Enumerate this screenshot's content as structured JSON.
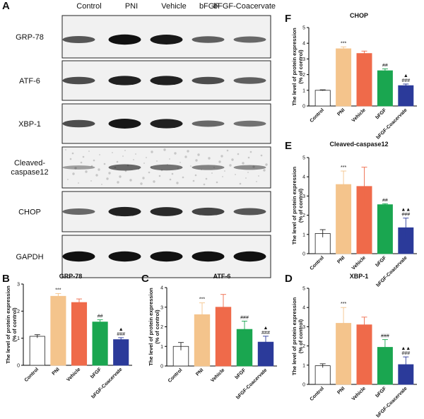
{
  "figure": {
    "colors": {
      "Control": "#ffffff",
      "PNI": "#f4c48c",
      "Vehicle": "#ef6a4a",
      "bFGF": "#1aa650",
      "bFGF-Coacervate": "#2b3a9a",
      "band": "#111111",
      "blot_bg": "#f1f1f1"
    },
    "blot": {
      "panel_label": "A",
      "lanes": [
        "Control",
        "PNI",
        "Vehicle",
        "bFGF",
        "bFGF-Coacervate"
      ],
      "rows": [
        {
          "label": "GRP-78",
          "intensity": [
            0.55,
            0.95,
            0.9,
            0.5,
            0.45
          ]
        },
        {
          "label": "ATF-6",
          "intensity": [
            0.6,
            0.85,
            0.85,
            0.6,
            0.5
          ]
        },
        {
          "label": "XBP-1",
          "intensity": [
            0.6,
            0.9,
            0.85,
            0.45,
            0.4
          ]
        },
        {
          "label": "Cleaved-caspase12",
          "intensity": [
            0.15,
            0.45,
            0.4,
            0.3,
            0.25
          ]
        },
        {
          "label": "CHOP",
          "intensity": [
            0.45,
            0.85,
            0.8,
            0.65,
            0.55
          ]
        },
        {
          "label": "GAPDH",
          "intensity": [
            0.95,
            0.95,
            0.95,
            0.95,
            0.95
          ]
        }
      ]
    }
  },
  "chart_data": [
    {
      "panel_label": "B",
      "type": "bar",
      "title": "GRP-78",
      "ylabel": "The level of protein expression\n(% of control)",
      "ylim": [
        0,
        3
      ],
      "yticks": [
        0,
        1,
        2,
        3
      ],
      "categories": [
        "Control",
        "PNI",
        "Vehicle",
        "bFGF",
        "bFGF-Coacervate"
      ],
      "values": [
        1.07,
        2.55,
        2.32,
        1.6,
        0.95
      ],
      "errors": [
        0.06,
        0.1,
        0.13,
        0.08,
        0.07
      ],
      "annotations": [
        [
          "",
          ""
        ],
        [
          "***",
          ""
        ],
        [
          "",
          ""
        ],
        [
          "##",
          ""
        ],
        [
          "###",
          "▲"
        ]
      ]
    },
    {
      "panel_label": "C",
      "type": "bar",
      "title": "ATF-6",
      "ylabel": "The level of protein expression\n(% of control)",
      "ylim": [
        0,
        4
      ],
      "yticks": [
        0,
        1,
        2,
        3,
        4
      ],
      "categories": [
        "Control",
        "PNI",
        "Vehicle",
        "bFGF",
        "bFGF-Coacervate"
      ],
      "values": [
        1.0,
        2.62,
        3.0,
        1.87,
        1.22
      ],
      "errors": [
        0.2,
        0.6,
        0.65,
        0.42,
        0.3
      ],
      "annotations": [
        [
          "",
          ""
        ],
        [
          "***",
          ""
        ],
        [
          "",
          ""
        ],
        [
          "###",
          ""
        ],
        [
          "###",
          "▲"
        ]
      ]
    },
    {
      "panel_label": "D",
      "type": "bar",
      "title": "XBP-1",
      "ylabel": "The level of protein expression\n(% of control)",
      "ylim": [
        0,
        5
      ],
      "yticks": [
        0,
        1,
        2,
        3,
        4,
        5
      ],
      "categories": [
        "Control",
        "PNI",
        "Vehicle",
        "bFGF",
        "bFGF-Coacervate"
      ],
      "values": [
        0.97,
        3.18,
        3.1,
        1.93,
        1.03
      ],
      "errors": [
        0.1,
        0.82,
        0.4,
        0.4,
        0.4
      ],
      "annotations": [
        [
          "",
          ""
        ],
        [
          "***",
          ""
        ],
        [
          "",
          ""
        ],
        [
          "###",
          ""
        ],
        [
          "###",
          "▲▲"
        ]
      ]
    },
    {
      "panel_label": "E",
      "type": "bar",
      "title": "Cleaved-caspase12",
      "ylabel": "The level of protein expression\n(% of control)",
      "ylim": [
        0,
        5
      ],
      "yticks": [
        0,
        1,
        2,
        3,
        4,
        5
      ],
      "categories": [
        "Control",
        "PNI",
        "Vehicle",
        "bFGF",
        "bFGF-Coacervate"
      ],
      "values": [
        1.05,
        3.6,
        3.5,
        2.55,
        1.35
      ],
      "errors": [
        0.2,
        0.7,
        1.0,
        0.05,
        0.5
      ],
      "annotations": [
        [
          "",
          ""
        ],
        [
          "***",
          ""
        ],
        [
          "",
          ""
        ],
        [
          "##",
          ""
        ],
        [
          "###",
          "▲▲"
        ]
      ]
    },
    {
      "panel_label": "F",
      "type": "bar",
      "title": "CHOP",
      "ylabel": "The level of protein expression\n(% of control)",
      "ylim": [
        0,
        5
      ],
      "yticks": [
        0,
        1,
        2,
        3,
        4,
        5
      ],
      "categories": [
        "Control",
        "PNI",
        "Vehicle",
        "bFGF",
        "bFGF-Coacervate"
      ],
      "values": [
        1.0,
        3.65,
        3.35,
        2.25,
        1.3
      ],
      "errors": [
        0.03,
        0.12,
        0.15,
        0.12,
        0.1
      ],
      "annotations": [
        [
          "",
          ""
        ],
        [
          "***",
          ""
        ],
        [
          "",
          ""
        ],
        [
          "##",
          ""
        ],
        [
          "###",
          "▲"
        ]
      ]
    }
  ]
}
